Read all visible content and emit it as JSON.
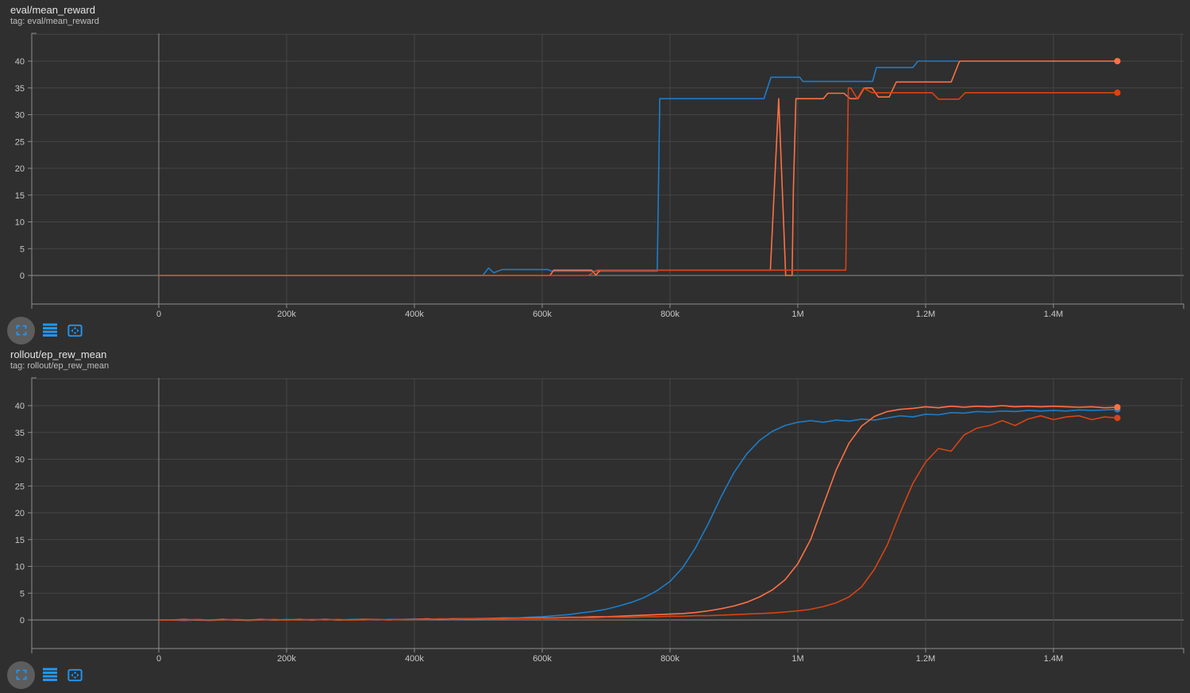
{
  "page": {
    "background_color": "#2f2f2f",
    "accent_color": "#2196f3",
    "zero_line_color": "#8d8d8d",
    "gridline_color": "#454545"
  },
  "chart_toolbar": {
    "buttons": [
      {
        "name": "fullscreen",
        "icon": "fullscreen-icon"
      },
      {
        "name": "data-table-toggle",
        "icon": "table-lines-icon"
      },
      {
        "name": "fit-to-domain",
        "icon": "fit-to-domain-icon"
      }
    ]
  },
  "chart_data": [
    {
      "type": "line",
      "title": "eval/mean_reward",
      "subtitle": "tag: eval/mean_reward",
      "xlabel": "",
      "ylabel": "",
      "x_axis": {
        "ticks": [
          {
            "step": 0,
            "label": "0"
          },
          {
            "step": 200000,
            "label": "200k"
          },
          {
            "step": 400000,
            "label": "400k"
          },
          {
            "step": 600000,
            "label": "600k"
          },
          {
            "step": 800000,
            "label": "800k"
          },
          {
            "step": 1000000,
            "label": "1M"
          },
          {
            "step": 1200000,
            "label": "1.2M"
          },
          {
            "step": 1400000,
            "label": "1.4M"
          }
        ],
        "unlabeled_gridline_steps": [
          1600000
        ],
        "range": [
          0,
          1600000
        ]
      },
      "y_axis": {
        "ticks": [
          {
            "value": 0,
            "label": "0"
          },
          {
            "value": 5,
            "label": "5"
          },
          {
            "value": 10,
            "label": "10"
          },
          {
            "value": 15,
            "label": "15"
          },
          {
            "value": 20,
            "label": "20"
          },
          {
            "value": 25,
            "label": "25"
          },
          {
            "value": 30,
            "label": "30"
          },
          {
            "value": 35,
            "label": "35"
          },
          {
            "value": 40,
            "label": "40"
          }
        ],
        "unlabeled_gridline_values": [
          45
        ],
        "range": [
          -5.3,
          45.2
        ]
      },
      "series": [
        {
          "name": "run-blue",
          "color": "#1d7dca",
          "end_dot": false,
          "points": [
            [
              0,
              0
            ],
            [
              507000,
              0
            ],
            [
              516000,
              1.4
            ],
            [
              524000,
              0.5
            ],
            [
              537000,
              1.1
            ],
            [
              609000,
              1.1
            ],
            [
              615000,
              0.8
            ],
            [
              780000,
              0.8
            ],
            [
              784000,
              33
            ],
            [
              947000,
              33
            ],
            [
              958000,
              37
            ],
            [
              1003000,
              37
            ],
            [
              1008000,
              36.2
            ],
            [
              1117000,
              36.2
            ],
            [
              1123000,
              38.8
            ],
            [
              1180000,
              38.8
            ],
            [
              1188000,
              40
            ],
            [
              1251000,
              40
            ]
          ]
        },
        {
          "name": "run-orange",
          "color": "#ff7043",
          "end_dot": true,
          "points": [
            [
              0,
              0
            ],
            [
              612000,
              0
            ],
            [
              618000,
              1
            ],
            [
              677000,
              1
            ],
            [
              684000,
              0.1
            ],
            [
              691000,
              1
            ],
            [
              957000,
              1
            ],
            [
              970000,
              33
            ],
            [
              981000,
              0
            ],
            [
              991000,
              0
            ],
            [
              993000,
              16
            ],
            [
              997000,
              33
            ],
            [
              1040000,
              33
            ],
            [
              1047000,
              34
            ],
            [
              1072000,
              34
            ],
            [
              1082000,
              33
            ],
            [
              1094000,
              33
            ],
            [
              1104000,
              35
            ],
            [
              1116000,
              35
            ],
            [
              1126000,
              33.3
            ],
            [
              1143000,
              33.3
            ],
            [
              1154000,
              36.1
            ],
            [
              1240000,
              36.1
            ],
            [
              1253000,
              40
            ],
            [
              1500000,
              40
            ]
          ]
        },
        {
          "name": "run-red",
          "color": "#d84315",
          "end_dot": true,
          "points": [
            [
              0,
              0
            ],
            [
              672000,
              0
            ],
            [
              686000,
              1
            ],
            [
              1075000,
              1
            ],
            [
              1079000,
              35
            ],
            [
              1083000,
              35
            ],
            [
              1093000,
              33
            ],
            [
              1103000,
              35
            ],
            [
              1116000,
              34.1
            ],
            [
              1210000,
              34.1
            ],
            [
              1220000,
              32.9
            ],
            [
              1252000,
              32.9
            ],
            [
              1262000,
              34.1
            ],
            [
              1500000,
              34.1
            ]
          ]
        }
      ]
    },
    {
      "type": "line",
      "title": "rollout/ep_rew_mean",
      "subtitle": "tag: rollout/ep_rew_mean",
      "xlabel": "",
      "ylabel": "",
      "x_axis": {
        "ticks": [
          {
            "step": 0,
            "label": "0"
          },
          {
            "step": 200000,
            "label": "200k"
          },
          {
            "step": 400000,
            "label": "400k"
          },
          {
            "step": 600000,
            "label": "600k"
          },
          {
            "step": 800000,
            "label": "800k"
          },
          {
            "step": 1000000,
            "label": "1M"
          },
          {
            "step": 1200000,
            "label": "1.2M"
          },
          {
            "step": 1400000,
            "label": "1.4M"
          }
        ],
        "unlabeled_gridline_steps": [
          1600000
        ],
        "range": [
          0,
          1600000
        ]
      },
      "y_axis": {
        "ticks": [
          {
            "value": 0,
            "label": "0"
          },
          {
            "value": 5,
            "label": "5"
          },
          {
            "value": 10,
            "label": "10"
          },
          {
            "value": 15,
            "label": "15"
          },
          {
            "value": 20,
            "label": "20"
          },
          {
            "value": 25,
            "label": "25"
          },
          {
            "value": 30,
            "label": "30"
          },
          {
            "value": 35,
            "label": "35"
          },
          {
            "value": 40,
            "label": "40"
          }
        ],
        "unlabeled_gridline_values": [
          45
        ],
        "range": [
          -5.3,
          45.2
        ]
      },
      "series": [
        {
          "name": "run-blue",
          "color": "#1d7dca",
          "end_dot": true,
          "start_step": 0,
          "step_interval": 20000,
          "values": [
            0,
            0,
            -0.1,
            0,
            -0.1,
            0,
            0,
            -0.1,
            0,
            0,
            0.1,
            0,
            0,
            0.1,
            0,
            0.1,
            0.1,
            0,
            0.1,
            0.1,
            0.2,
            0.1,
            0.2,
            0.2,
            0.2,
            0.3,
            0.3,
            0.4,
            0.4,
            0.5,
            0.6,
            0.8,
            1.0,
            1.3,
            1.6,
            2.0,
            2.6,
            3.3,
            4.2,
            5.5,
            7.2,
            9.8,
            13.5,
            18.0,
            23.0,
            27.5,
            31.0,
            33.5,
            35.2,
            36.3,
            36.9,
            37.2,
            36.9,
            37.3,
            37.1,
            37.5,
            37.3,
            37.7,
            38.1,
            37.9,
            38.4,
            38.3,
            38.7,
            38.6,
            38.9,
            38.8,
            39.0,
            38.9,
            39.1,
            39.0,
            39.1,
            39.0,
            39.2,
            39.1,
            39.2,
            39.3
          ]
        },
        {
          "name": "run-orange",
          "color": "#ff7043",
          "end_dot": true,
          "start_step": 0,
          "step_interval": 20000,
          "values": [
            0,
            0,
            0.1,
            0,
            0,
            0.1,
            0,
            0,
            0.1,
            0,
            0,
            0.1,
            0,
            0.1,
            0,
            0,
            0.1,
            0.1,
            0,
            0.1,
            0.1,
            0.2,
            0.1,
            0.2,
            0.2,
            0.2,
            0.3,
            0.3,
            0.3,
            0.4,
            0.4,
            0.4,
            0.5,
            0.5,
            0.6,
            0.6,
            0.7,
            0.8,
            0.9,
            1.0,
            1.1,
            1.2,
            1.4,
            1.7,
            2.1,
            2.6,
            3.3,
            4.3,
            5.6,
            7.5,
            10.5,
            15.0,
            21.5,
            28.0,
            33.0,
            36.2,
            38.0,
            38.9,
            39.3,
            39.5,
            39.8,
            39.6,
            39.9,
            39.7,
            39.9,
            39.8,
            40.0,
            39.8,
            39.9,
            39.8,
            39.9,
            39.8,
            39.7,
            39.8,
            39.6,
            39.7
          ]
        },
        {
          "name": "run-red",
          "color": "#d84315",
          "end_dot": true,
          "start_step": 0,
          "step_interval": 20000,
          "values": [
            0,
            0,
            0,
            0.1,
            0,
            0,
            0.1,
            0,
            0,
            0.1,
            0,
            0,
            0.1,
            0,
            0.1,
            0,
            0,
            0.1,
            0,
            0.1,
            0.1,
            0.1,
            0.2,
            0.1,
            0.2,
            0.2,
            0.2,
            0.2,
            0.3,
            0.3,
            0.3,
            0.3,
            0.4,
            0.4,
            0.4,
            0.5,
            0.5,
            0.5,
            0.6,
            0.6,
            0.7,
            0.7,
            0.8,
            0.8,
            0.9,
            1.0,
            1.1,
            1.2,
            1.3,
            1.5,
            1.7,
            2.0,
            2.5,
            3.2,
            4.3,
            6.2,
            9.5,
            14.0,
            20.0,
            25.5,
            29.5,
            32.0,
            31.5,
            34.5,
            35.8,
            36.3,
            37.2,
            36.3,
            37.5,
            38.1,
            37.4,
            37.9,
            38.1,
            37.4,
            37.9,
            37.7
          ]
        }
      ]
    }
  ]
}
